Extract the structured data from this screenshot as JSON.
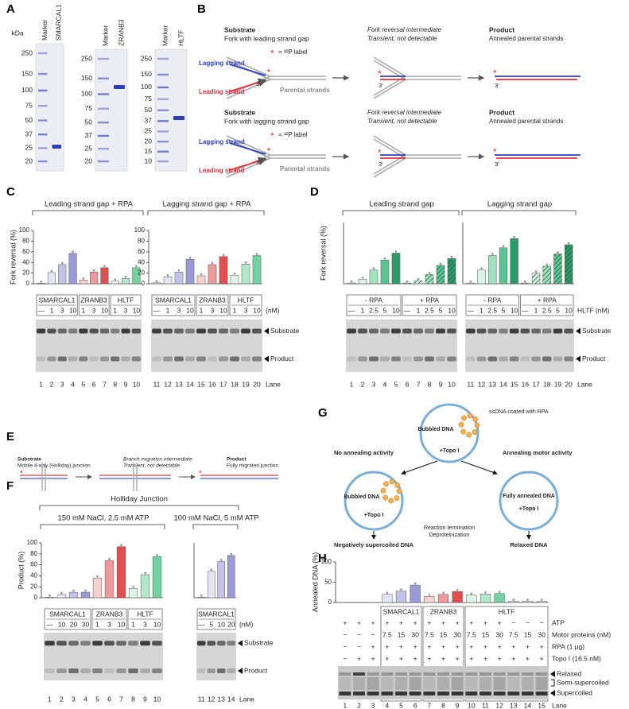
{
  "A": {
    "letter": "A",
    "unit": "kDa",
    "gels": [
      {
        "lanes": [
          "Marker",
          "SMARCAL1"
        ],
        "markers": [
          250,
          150,
          100,
          75,
          50,
          37,
          25,
          20
        ]
      },
      {
        "lanes": [
          "Marker",
          "ZRANB3"
        ],
        "markers": [
          250,
          150,
          100,
          75,
          50,
          37,
          25,
          20
        ]
      },
      {
        "lanes": [
          "Marker",
          "HLTF"
        ],
        "markers": [
          250,
          150,
          100,
          75,
          50,
          37,
          25,
          20,
          15,
          10
        ]
      }
    ]
  },
  "B": {
    "letter": "B",
    "star": "*",
    "label": "= ³²P label",
    "strands": {
      "lagging": "Lagging strand",
      "leading": "Leading strand",
      "parental": "Parental strands",
      "end": "3'"
    },
    "rows": [
      {
        "substrate": "Substrate",
        "substrate_desc": "Fork with leading strand gap",
        "intermediate": "Fork reversal intermediate",
        "intermediate_desc": "Transient, not detectable",
        "product": "Product",
        "product_desc": "Annealed parental strands"
      },
      {
        "substrate": "Substrate",
        "substrate_desc": "Fork with lagging strand gap",
        "intermediate": "Fork reversal intermediate",
        "intermediate_desc": "Transient, not detectable",
        "product": "Product",
        "product_desc": "Annealed parental strands"
      }
    ]
  },
  "C": {
    "letter": "C",
    "gels": [
      {
        "groups": [
          {
            "name": "SMARCAL1",
            "conc": [
              "—",
              1,
              3,
              10
            ]
          },
          {
            "name": "ZRANB3",
            "conc": [
              1,
              3,
              10
            ]
          },
          {
            "name": "HLTF",
            "conc": [
              1,
              3,
              10
            ]
          }
        ]
      },
      {
        "groups": [
          {
            "name": "SMARCAL1",
            "conc": [
              "—",
              1,
              3,
              10
            ]
          },
          {
            "name": "ZRANB3",
            "conc": [
              1,
              3,
              10
            ]
          },
          {
            "name": "HLTF",
            "conc": [
              1,
              3,
              10
            ]
          }
        ],
        "unit": "(nM)",
        "bands": [
          "Substrate",
          "Product"
        ],
        "lane_label": "Lane"
      }
    ]
  },
  "D": {
    "letter": "D",
    "gels": [
      {
        "groups": [
          {
            "name": "- RPA",
            "conc": [
              "—",
              1,
              2.5,
              5,
              10
            ]
          },
          {
            "name": "+ RPA",
            "conc": [
              "—",
              1,
              2.5,
              5,
              10
            ]
          }
        ]
      },
      {
        "groups": [
          {
            "name": "- RPA",
            "conc": [
              "—",
              1,
              2.5,
              5,
              10
            ]
          },
          {
            "name": "+ RPA",
            "conc": [
              "—",
              1,
              2.5,
              5,
              10
            ]
          }
        ],
        "unit": "HLTF (nM)",
        "bands": [
          "Substrate",
          "Product"
        ],
        "lane_label": "Lane"
      }
    ]
  },
  "E": {
    "letter": "E",
    "substrate": "Substrate",
    "substrate_desc": "Mobile 4-way (Holliday) junction",
    "intermediate": "Branch migration intermediate",
    "intermediate_desc": "Transient, not detectable",
    "product": "Product",
    "product_desc": "Fully migrated junction"
  },
  "F": {
    "letter": "F",
    "title": "Holliday Junction",
    "gels": [
      {
        "groups": [
          {
            "name": "SMARCAL1",
            "conc": [
              "—",
              10,
              20,
              30
            ]
          },
          {
            "name": "ZRANB3",
            "conc": [
              1,
              3,
              10
            ]
          },
          {
            "name": "HLTF",
            "conc": [
              1,
              3,
              10
            ]
          }
        ]
      },
      {
        "groups": [
          {
            "name": "SMARCAL1",
            "conc": [
              "—",
              5,
              10,
              20
            ]
          }
        ],
        "unit": "(nM)",
        "bands": [
          "Substrate",
          "Product"
        ],
        "lane_label": "Lane"
      }
    ]
  },
  "G": {
    "letter": "G",
    "bubbled": "Bubbled DNA",
    "coated": "ssDNA coated with RPA",
    "topo": "+Topo I",
    "no_annealing": "No annealing activity",
    "annealing": "Annealing motor activity",
    "annealed": "Fully annealed DNA",
    "termination": "Reaction termination",
    "deproteinization": "Deproteinization",
    "neg": "Negatively supercoiled DNA",
    "relaxed": "Relaxed DNA"
  },
  "H": {
    "letter": "H",
    "groups": [
      "SMARCAL1",
      "ZRANB3",
      "HLTF"
    ],
    "rows": [
      {
        "label": "ATP",
        "cells": [
          "+",
          "+",
          "+",
          "+",
          "+",
          "+",
          "+",
          "+",
          "+",
          "+",
          "+",
          "+",
          "−",
          "−",
          "−"
        ]
      },
      {
        "label": "Motor proteins (nM)",
        "cells": [
          "−",
          "−",
          "−",
          7.5,
          15,
          30,
          7.5,
          15,
          30,
          7.5,
          15,
          30,
          7.5,
          15,
          30
        ]
      },
      {
        "label": "RPA (1 μg)",
        "cells": [
          "−",
          "−",
          "+",
          "+",
          "+",
          "+",
          "+",
          "+",
          "+",
          "+",
          "+",
          "+",
          "+",
          "+",
          "+"
        ]
      },
      {
        "label": "Topo I (16.5 nM)",
        "cells": [
          "−",
          "+",
          "+",
          "+",
          "+",
          "+",
          "+",
          "+",
          "+",
          "+",
          "+",
          "+",
          "+",
          "+",
          "+"
        ]
      }
    ],
    "bands": [
      "Relaxed",
      "Semi-supercoiled",
      "Supercoiled"
    ],
    "lane_label": "Lane"
  },
  "chart_data": [
    {
      "type": "bar",
      "title": "Leading strand gap + RPA",
      "ylabel": "Fork reversal (%)",
      "categories": [
        1,
        2,
        3,
        4,
        5,
        6,
        7,
        8,
        9,
        10
      ],
      "values": [
        1,
        21,
        36,
        57,
        7,
        22,
        30,
        5,
        10,
        30
      ],
      "colors": [
        "#d9d9d9",
        "#e4e4f5",
        "#c2c2ea",
        "#9a9ad9",
        "#f7d0d0",
        "#ee9a9a",
        "#e05050",
        "#dff3e8",
        "#b0e8c8",
        "#72d2a0"
      ],
      "ylim": [
        0,
        100
      ],
      "yticks": [
        0,
        20,
        40,
        60,
        80,
        100
      ]
    },
    {
      "type": "bar",
      "title": "Lagging strand gap + RPA",
      "categories": [
        11,
        12,
        13,
        14,
        15,
        16,
        17,
        18,
        19,
        20
      ],
      "values": [
        2,
        13,
        22,
        46,
        15,
        36,
        51,
        16,
        37,
        53
      ],
      "colors": [
        "#d9d9d9",
        "#e4e4f5",
        "#c2c2ea",
        "#9a9ad9",
        "#f7d0d0",
        "#ee9a9a",
        "#e05050",
        "#dff3e8",
        "#b0e8c8",
        "#72d2a0"
      ],
      "ylim": [
        0,
        100
      ],
      "yticks": [
        0,
        20,
        40,
        60,
        80,
        100
      ]
    },
    {
      "type": "bar",
      "title": "Leading strand gap",
      "ylabel": "Fork reversal (%)",
      "categories": [
        1,
        2,
        3,
        4,
        5,
        6,
        7,
        8,
        9,
        10
      ],
      "values": [
        1,
        6,
        18,
        31,
        40,
        1,
        4,
        12,
        24,
        33
      ],
      "colors": [
        "#d9d9d9",
        "#d8f3e4",
        "#9fe3be",
        "#5cc490",
        "#2e9a68",
        "#d9d9d9",
        "#d8f3e4",
        "#9fe3be",
        "#5cc490",
        "#2e9a68"
      ],
      "hatched": [
        false,
        false,
        false,
        false,
        false,
        true,
        true,
        true,
        true,
        true
      ],
      "ylim": [
        0,
        80
      ]
    },
    {
      "type": "bar",
      "title": "Lagging strand gap",
      "categories": [
        11,
        12,
        13,
        14,
        15,
        16,
        17,
        18,
        19,
        20
      ],
      "values": [
        1,
        18,
        37,
        47,
        59,
        1,
        14,
        23,
        39,
        51
      ],
      "colors": [
        "#d9d9d9",
        "#d8f3e4",
        "#9fe3be",
        "#5cc490",
        "#2e9a68",
        "#d9d9d9",
        "#d8f3e4",
        "#9fe3be",
        "#5cc490",
        "#2e9a68"
      ],
      "hatched": [
        false,
        false,
        false,
        false,
        false,
        true,
        true,
        true,
        true,
        true
      ],
      "ylim": [
        0,
        80
      ]
    },
    {
      "type": "bar",
      "title": "150 mM NaCl, 2.5 mM ATP",
      "ylabel": "Product (%)",
      "categories": [
        1,
        2,
        3,
        4,
        5,
        6,
        7,
        8,
        9,
        10
      ],
      "values": [
        1,
        6,
        10,
        10,
        36,
        68,
        93,
        17,
        42,
        75
      ],
      "colors": [
        "#d9d9d9",
        "#e4e4f5",
        "#c2c2ea",
        "#9a9ad9",
        "#f7d0d0",
        "#ee9a9a",
        "#e05050",
        "#dff3e8",
        "#b0e8c8",
        "#72d2a0"
      ],
      "ylim": [
        0,
        100
      ],
      "yticks": [
        0,
        20,
        40,
        60,
        80,
        100
      ]
    },
    {
      "type": "bar",
      "title": "100 mM NaCl, 5 mM ATP",
      "categories": [
        11,
        12,
        13,
        14
      ],
      "values": [
        1,
        48,
        66,
        77
      ],
      "colors": [
        "#d9d9d9",
        "#e4e4f5",
        "#c2c2ea",
        "#9a9ad9"
      ],
      "ylim": [
        0,
        100
      ]
    },
    {
      "type": "bar",
      "ylabel": "Annealed DNA (%)",
      "categories": [
        1,
        2,
        3,
        4,
        5,
        6,
        7,
        8,
        9,
        10,
        11,
        12,
        13,
        14,
        15
      ],
      "values": [
        null,
        null,
        null,
        20,
        28,
        43,
        15,
        20,
        27,
        18,
        21,
        22,
        3,
        3,
        3
      ],
      "colors": [
        null,
        null,
        null,
        "#e4e4f5",
        "#c2c2ea",
        "#9a9ad9",
        "#f7d0d0",
        "#ee9a9a",
        "#e05050",
        "#dff3e8",
        "#b0e8c8",
        "#72d2a0",
        "#dddddd",
        "#dddddd",
        "#dddddd"
      ],
      "ylim": [
        0,
        100
      ],
      "yticks": [
        0,
        50,
        100
      ]
    }
  ]
}
